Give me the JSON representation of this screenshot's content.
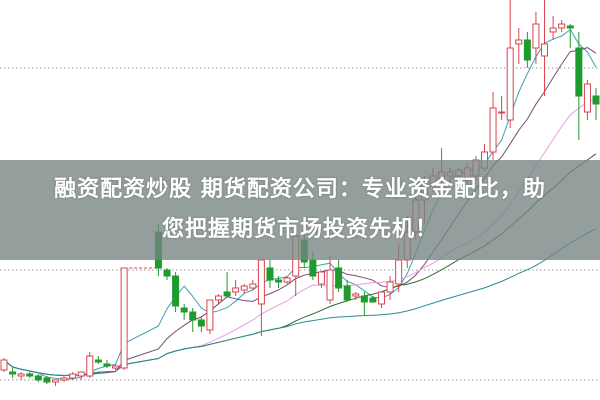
{
  "headline": {
    "line1": "融资配资炒股 期货配资公司：专业资金配比，助",
    "line2": "您把握期货市场投资先机！"
  },
  "chart_data": {
    "type": "candlestick",
    "title": "",
    "xlabel": "",
    "ylabel": "",
    "ylim": [
      0,
      100
    ],
    "grid": "dotted horizontal",
    "gridlines": [
      83,
      32.5,
      5
    ],
    "colors": {
      "up": "#d9444f",
      "down": "#1f9a2e",
      "ma": [
        "#3aa3b0",
        "#7b4a78",
        "#e79be2",
        "#2d6b2f",
        "#2c8c94"
      ]
    },
    "moving_average_periods": [
      5,
      10,
      20,
      30,
      60
    ],
    "limit_gap": {
      "from": 14,
      "to": 18
    },
    "candles": [
      [
        7.5,
        10.5,
        7,
        10
      ],
      [
        7,
        8,
        5.5,
        6.5
      ],
      [
        6,
        7,
        5,
        6.5
      ],
      [
        6.5,
        7,
        5.5,
        6
      ],
      [
        6,
        6.5,
        4.5,
        5
      ],
      [
        5.5,
        6,
        4,
        4.5
      ],
      [
        4.5,
        5,
        3.5,
        5
      ],
      [
        5,
        6,
        4.5,
        5.5
      ],
      [
        5.5,
        7,
        5,
        6.5
      ],
      [
        6,
        7,
        5,
        7
      ],
      [
        6,
        12,
        5.5,
        11
      ],
      [
        10,
        11,
        9,
        9.5
      ],
      [
        9,
        10,
        8,
        8.5
      ],
      [
        8,
        9,
        7.5,
        8.5
      ],
      [
        8,
        33,
        7.5,
        33
      ],
      null,
      null,
      null,
      [
        42,
        44,
        31,
        33
      ],
      [
        32.5,
        33,
        30,
        31
      ],
      [
        31,
        32,
        22,
        23.5
      ],
      [
        23,
        24,
        20,
        22
      ],
      [
        22,
        23,
        17,
        20
      ],
      [
        20,
        21,
        17,
        18.5
      ],
      [
        17.5,
        25,
        16.5,
        25
      ],
      [
        25,
        26.5,
        24,
        26
      ],
      [
        27,
        32,
        26,
        26
      ],
      [
        27,
        30,
        26,
        28
      ],
      [
        27.5,
        29,
        26.5,
        28.5
      ],
      [
        28,
        30,
        27.5,
        29
      ],
      [
        24,
        35,
        16,
        35
      ],
      [
        33,
        35,
        28,
        30
      ],
      [
        30,
        31,
        28,
        29.5
      ],
      [
        29.5,
        31,
        29,
        30.5
      ],
      [
        31,
        44,
        26,
        41
      ],
      [
        40,
        42,
        33,
        34.5
      ],
      [
        35,
        37,
        30,
        31
      ],
      [
        29,
        32,
        28,
        32
      ],
      [
        25,
        36,
        24,
        32.5
      ],
      [
        33,
        35,
        27,
        28
      ],
      [
        28.5,
        30,
        25,
        25
      ],
      [
        26,
        27,
        25,
        26.5
      ],
      [
        26,
        27,
        21,
        24.5
      ],
      [
        25.5,
        26,
        24.5,
        24.5
      ],
      [
        24,
        26.5,
        23,
        27
      ],
      [
        27,
        31,
        25,
        29.5
      ],
      [
        29,
        39,
        27,
        35
      ],
      [
        35,
        46,
        33,
        42
      ],
      [
        42,
        51,
        40,
        50
      ],
      [
        50,
        56,
        44,
        55
      ],
      [
        54,
        58,
        52,
        56
      ],
      [
        55,
        63,
        54,
        57
      ],
      [
        56,
        58,
        54,
        57
      ],
      [
        56,
        58,
        55,
        57.5
      ],
      [
        55,
        59,
        54,
        58
      ],
      [
        56,
        61,
        55,
        60
      ],
      [
        58,
        64,
        57,
        62
      ],
      [
        62,
        77,
        60,
        73
      ],
      [
        72,
        76,
        70,
        72
      ],
      [
        70,
        100,
        68,
        88
      ],
      [
        89,
        93,
        84,
        90
      ],
      [
        90,
        92,
        83,
        85
      ],
      [
        88,
        97,
        84,
        94
      ],
      [
        86,
        100,
        76,
        89
      ],
      [
        92,
        96,
        90,
        93
      ],
      [
        93,
        95,
        92,
        94
      ],
      [
        93.5,
        94,
        88,
        93
      ],
      [
        88,
        92,
        65,
        76
      ],
      [
        72,
        80,
        70,
        79
      ],
      [
        76,
        78,
        70,
        74
      ]
    ]
  }
}
